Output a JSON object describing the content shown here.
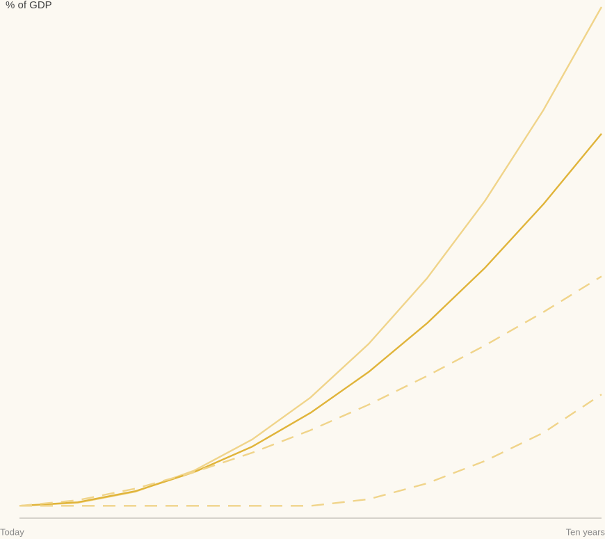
{
  "chart_data": {
    "type": "line",
    "title": "% of GDP",
    "x": [
      0,
      1,
      2,
      3,
      4,
      5,
      6,
      7,
      8,
      9,
      10
    ],
    "xlim": [
      0,
      10
    ],
    "xticks": [
      {
        "value": 0,
        "label": "Today"
      },
      {
        "value": 10,
        "label": "Ten years"
      }
    ],
    "ylim": [
      0,
      100
    ],
    "grid": false,
    "series": [
      {
        "color": "#f0d48a",
        "dashed": false,
        "values": [
          2.4,
          3.0,
          5.2,
          9.3,
          15.4,
          23.6,
          34.1,
          46.9,
          62.1,
          79.8,
          100
        ]
      },
      {
        "color": "#e0b43a",
        "dashed": false,
        "values": [
          2.4,
          3.1,
          5.3,
          9.0,
          14.0,
          20.6,
          28.6,
          38.1,
          49.0,
          61.4,
          75.2
        ]
      },
      {
        "color": "#f0d48a",
        "dashed": true,
        "values": [
          2.4,
          3.5,
          5.8,
          9.0,
          12.8,
          17.2,
          22.2,
          27.8,
          33.8,
          40.3,
          47.3
        ]
      },
      {
        "color": "#f0d48a",
        "dashed": true,
        "values": [
          2.4,
          2.4,
          2.4,
          2.4,
          2.4,
          2.4,
          3.7,
          6.8,
          11.2,
          16.7,
          24.2
        ]
      }
    ]
  }
}
